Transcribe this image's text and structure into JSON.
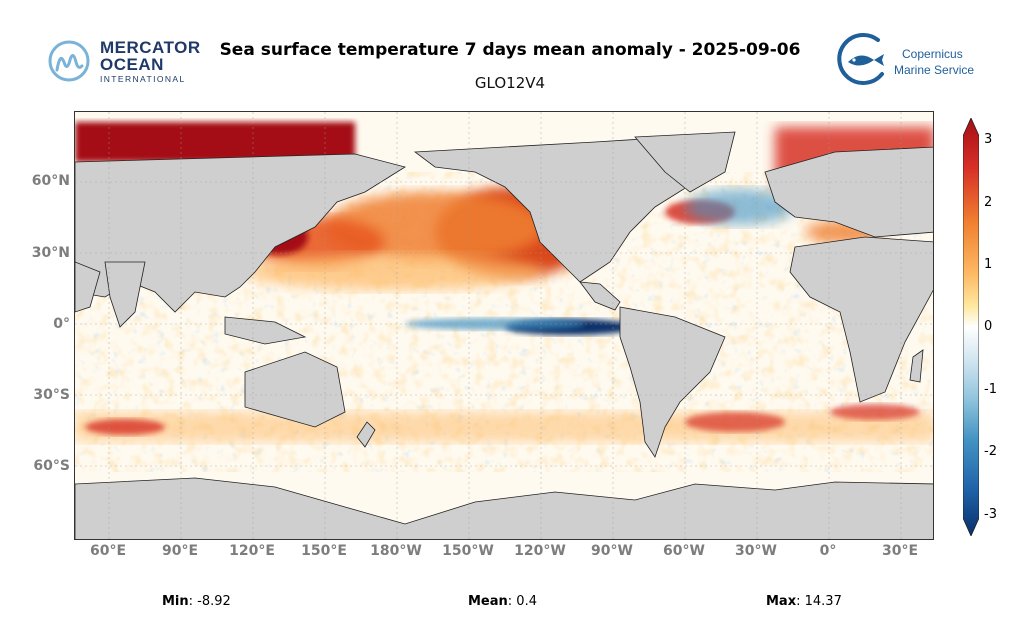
{
  "header": {
    "title": "Sea surface temperature 7 days mean anomaly - 2025-09-06",
    "subtitle": "GLO12V4"
  },
  "logos": {
    "left": {
      "line1": "MERCATOR",
      "line2": "OCEAN",
      "line3": "INTERNATIONAL",
      "color": "#1f3a68"
    },
    "right": {
      "line1": "Copernicus",
      "line2": "Marine Service",
      "color": "#1f5f9a"
    }
  },
  "map": {
    "projection": "plate-carree",
    "land_color": "#cfcfcf",
    "lat_labels": [
      "60°N",
      "30°N",
      "0°",
      "30°S",
      "60°S"
    ],
    "lon_labels": [
      "60°E",
      "90°E",
      "120°E",
      "150°E",
      "180°W",
      "150°W",
      "120°W",
      "90°W",
      "60°W",
      "30°W",
      "0°",
      "30°E"
    ],
    "grid": true
  },
  "colorbar": {
    "ticks": [
      "3",
      "2",
      "1",
      "0",
      "-1",
      "-2",
      "-3"
    ],
    "range": [
      -3,
      3
    ],
    "colors": [
      "#08306b",
      "#2166ac",
      "#4393c3",
      "#92c5de",
      "#d1e5f0",
      "#ffffff",
      "#fee8a0",
      "#fdb863",
      "#f08030",
      "#d73027",
      "#a50f15"
    ]
  },
  "stats": {
    "min_label": "Min",
    "min_value": ": -8.92",
    "mean_label": "Mean",
    "mean_value": ": 0.4",
    "max_label": "Max",
    "max_value": ": 14.37"
  }
}
